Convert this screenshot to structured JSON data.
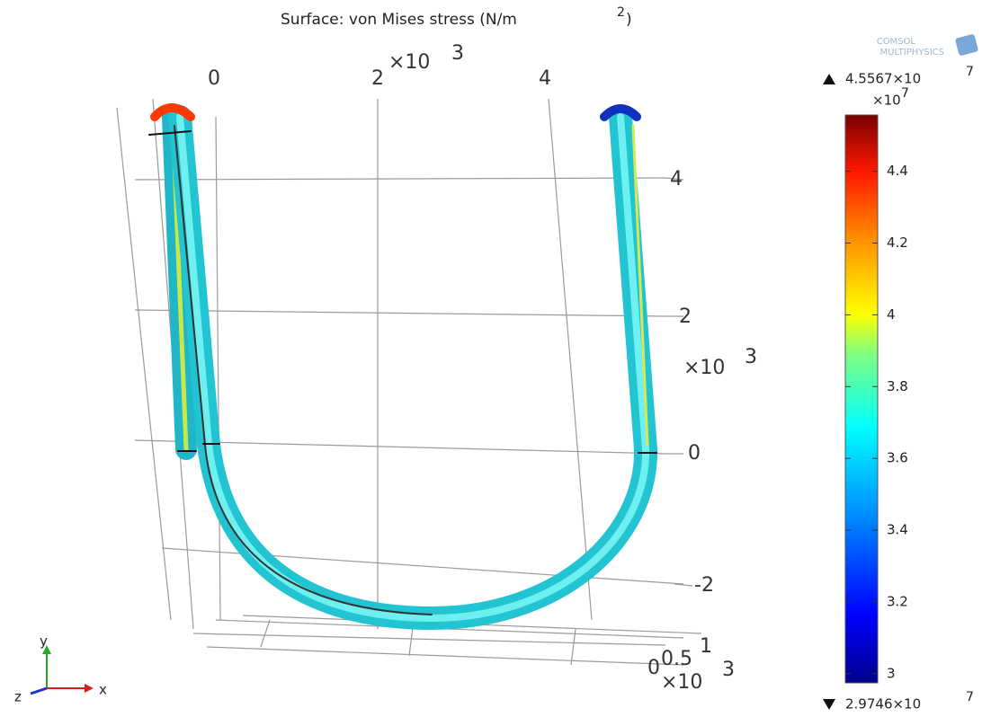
{
  "title": {
    "text": "Surface: von Mises stress (N/m",
    "superscript": "2",
    "close": ")"
  },
  "logo": {
    "line1": "COMSOL",
    "line2": "MULTIPHYSICS"
  },
  "top_axis": {
    "ticks": [
      "0",
      "2",
      "4"
    ],
    "multiplier": "×10",
    "exponent": "3"
  },
  "right_axis": {
    "ticks": [
      "4",
      "2",
      "0",
      "-2"
    ],
    "multiplier": "×10",
    "exponent": "3"
  },
  "depth_axis": {
    "ticks": [
      "1",
      "0.5",
      "0"
    ],
    "multiplier": "×10",
    "exponent": "3"
  },
  "colorbar": {
    "max_label": "4.5567×10",
    "max_exponent": "7",
    "multiplier": "×10",
    "exponent": "7",
    "ticks": [
      4.4,
      4.2,
      4,
      3.8,
      3.6,
      3.4,
      3.2,
      3
    ],
    "min_label": "2.9746×10",
    "min_exponent": "7"
  },
  "triad": {
    "x": "x",
    "y": "y",
    "z": "z"
  }
}
